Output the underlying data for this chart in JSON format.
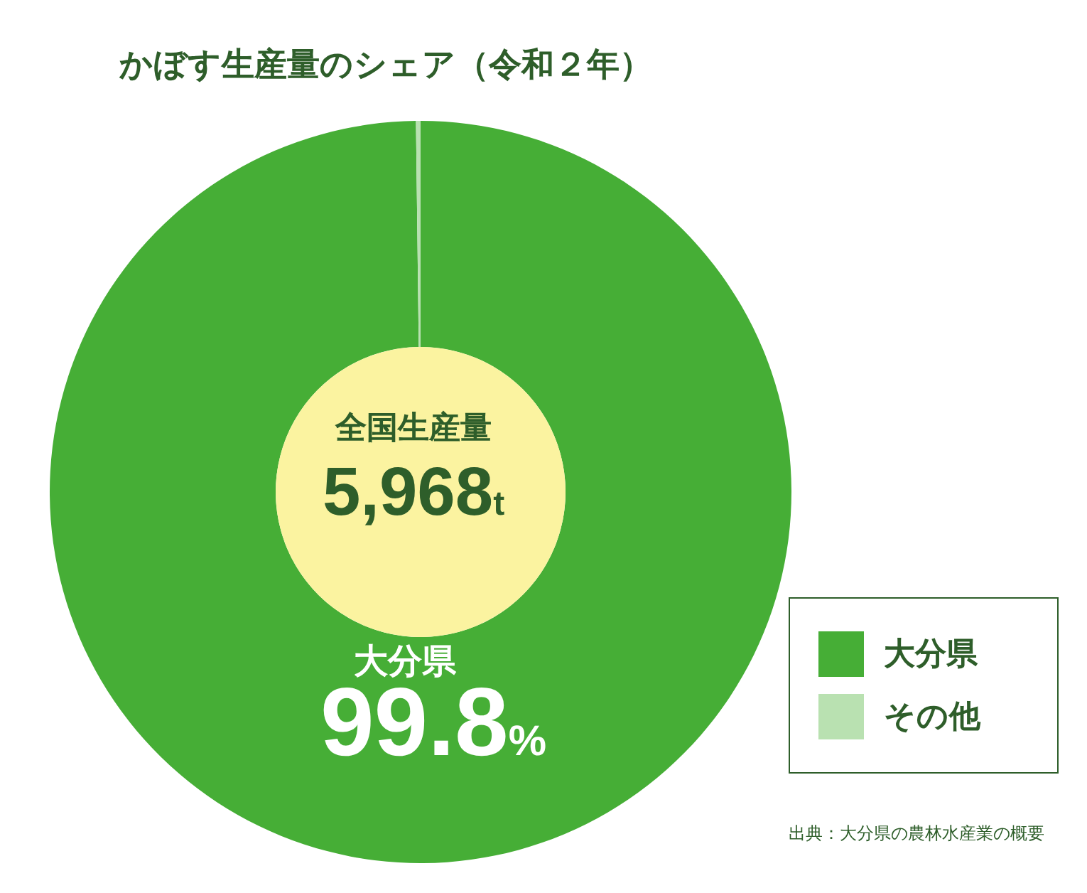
{
  "chart_data": {
    "type": "donut",
    "title": "かぼす生産量のシェア（令和２年）",
    "categories": [
      "大分県",
      "その他"
    ],
    "values": [
      99.8,
      0.2
    ],
    "colors": [
      "#46ae36",
      "#b9e1b1"
    ],
    "value_labels": [
      "99.8%",
      null
    ],
    "annotations": [
      "全国生産量",
      "5,968t",
      "出典：大分県の農林水産業の概要"
    ],
    "legend": "bottom right"
  }
}
